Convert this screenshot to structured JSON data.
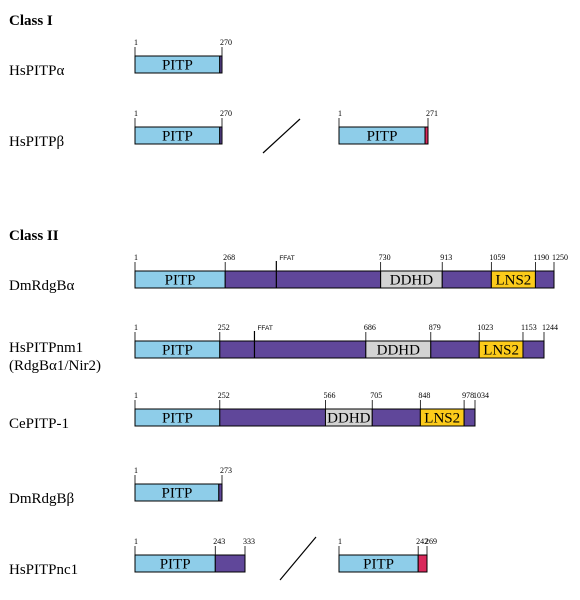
{
  "colors": {
    "pitp": "#8ecde9",
    "body": "#60479a",
    "ddhd": "#d3d3d3",
    "lns2": "#fccb1a",
    "cterm_red": "#d9295b",
    "outline": "#000000"
  },
  "sections": [
    {
      "id": "class1",
      "title": "Class I"
    },
    {
      "id": "class2",
      "title": "Class II"
    }
  ],
  "proteins": [
    {
      "id": "hspitpa",
      "label": [
        "HsPITPα"
      ],
      "segments": [
        {
          "id": "a",
          "length": 270,
          "parts": [
            {
              "type": "pitp",
              "from": 1,
              "to": 263,
              "label": "PITP"
            },
            {
              "type": "body",
              "from": 263,
              "to": 270
            }
          ],
          "positions": [
            "1",
            "270"
          ]
        }
      ]
    },
    {
      "id": "hspitpb",
      "label": [
        "HsPITPβ"
      ],
      "segments": [
        {
          "id": "a",
          "length": 270,
          "parts": [
            {
              "type": "pitp",
              "from": 1,
              "to": 263,
              "label": "PITP"
            },
            {
              "type": "body",
              "from": 263,
              "to": 270
            }
          ],
          "positions": [
            "1",
            "270"
          ]
        },
        {
          "id": "b",
          "length": 271,
          "parts": [
            {
              "type": "pitp",
              "from": 1,
              "to": 262,
              "label": "PITP"
            },
            {
              "type": "cterm_red",
              "from": 262,
              "to": 271
            }
          ],
          "positions": [
            "1",
            "271"
          ]
        }
      ]
    },
    {
      "id": "dmrdgba",
      "label": [
        "DmRdgBα"
      ],
      "segments": [
        {
          "id": "a",
          "length": 1250,
          "parts": [
            {
              "type": "pitp",
              "from": 1,
              "to": 268,
              "label": "PITP"
            },
            {
              "type": "body",
              "from": 268,
              "to": 730
            },
            {
              "type": "ddhd",
              "from": 730,
              "to": 913,
              "label": "DDHD"
            },
            {
              "type": "body",
              "from": 913,
              "to": 1059
            },
            {
              "type": "lns2",
              "from": 1059,
              "to": 1190,
              "label": "LNS2"
            },
            {
              "type": "body",
              "from": 1190,
              "to": 1250
            }
          ],
          "ffat": {
            "pos": 420,
            "label": "FFAT"
          },
          "positions": [
            "1",
            "268",
            "730",
            "913",
            "1059",
            "1190",
            "1250"
          ]
        }
      ]
    },
    {
      "id": "hspitpnm1",
      "label": [
        "HsPITPnm1",
        "(RdgBα1/Nir2)"
      ],
      "segments": [
        {
          "id": "a",
          "length": 1244,
          "parts": [
            {
              "type": "pitp",
              "from": 1,
              "to": 252,
              "label": "PITP"
            },
            {
              "type": "body",
              "from": 252,
              "to": 686
            },
            {
              "type": "ddhd",
              "from": 686,
              "to": 879,
              "label": "DDHD"
            },
            {
              "type": "body",
              "from": 879,
              "to": 1023
            },
            {
              "type": "lns2",
              "from": 1023,
              "to": 1153,
              "label": "LNS2"
            },
            {
              "type": "body",
              "from": 1153,
              "to": 1244
            }
          ],
          "ffat": {
            "pos": 355,
            "label": "FFAT"
          },
          "positions": [
            "1",
            "252",
            "686",
            "879",
            "1023",
            "1153",
            "1244"
          ]
        }
      ]
    },
    {
      "id": "cepitp1",
      "label": [
        "CePITP-1"
      ],
      "segments": [
        {
          "id": "a",
          "length": 1034,
          "parts": [
            {
              "type": "pitp",
              "from": 1,
              "to": 252,
              "label": "PITP"
            },
            {
              "type": "body",
              "from": 252,
              "to": 566
            },
            {
              "type": "ddhd",
              "from": 566,
              "to": 705,
              "label": "DDHD"
            },
            {
              "type": "body",
              "from": 705,
              "to": 848
            },
            {
              "type": "lns2",
              "from": 848,
              "to": 978,
              "label": "LNS2"
            },
            {
              "type": "body",
              "from": 978,
              "to": 1034
            }
          ],
          "positions": [
            "1",
            "252",
            "566",
            "705",
            "848",
            "978",
            "1034"
          ]
        }
      ]
    },
    {
      "id": "dmrdgbb",
      "label": [
        "DmRdgBβ"
      ],
      "segments": [
        {
          "id": "a",
          "length": 273,
          "parts": [
            {
              "type": "pitp",
              "from": 1,
              "to": 263,
              "label": "PITP"
            },
            {
              "type": "body",
              "from": 263,
              "to": 273
            }
          ],
          "positions": [
            "1",
            "273"
          ]
        }
      ]
    },
    {
      "id": "hspitpnc1",
      "label": [
        "HsPITPnc1"
      ],
      "segments": [
        {
          "id": "a",
          "length": 333,
          "parts": [
            {
              "type": "pitp",
              "from": 1,
              "to": 243,
              "label": "PITP"
            },
            {
              "type": "body",
              "from": 243,
              "to": 333
            }
          ],
          "positions": [
            "1",
            "243",
            "333"
          ]
        },
        {
          "id": "b",
          "length": 269,
          "parts": [
            {
              "type": "pitp",
              "from": 1,
              "to": 242,
              "label": "PITP"
            },
            {
              "type": "cterm_red",
              "from": 242,
              "to": 269
            }
          ],
          "positions": [
            "1",
            "242",
            "269"
          ]
        }
      ]
    }
  ]
}
